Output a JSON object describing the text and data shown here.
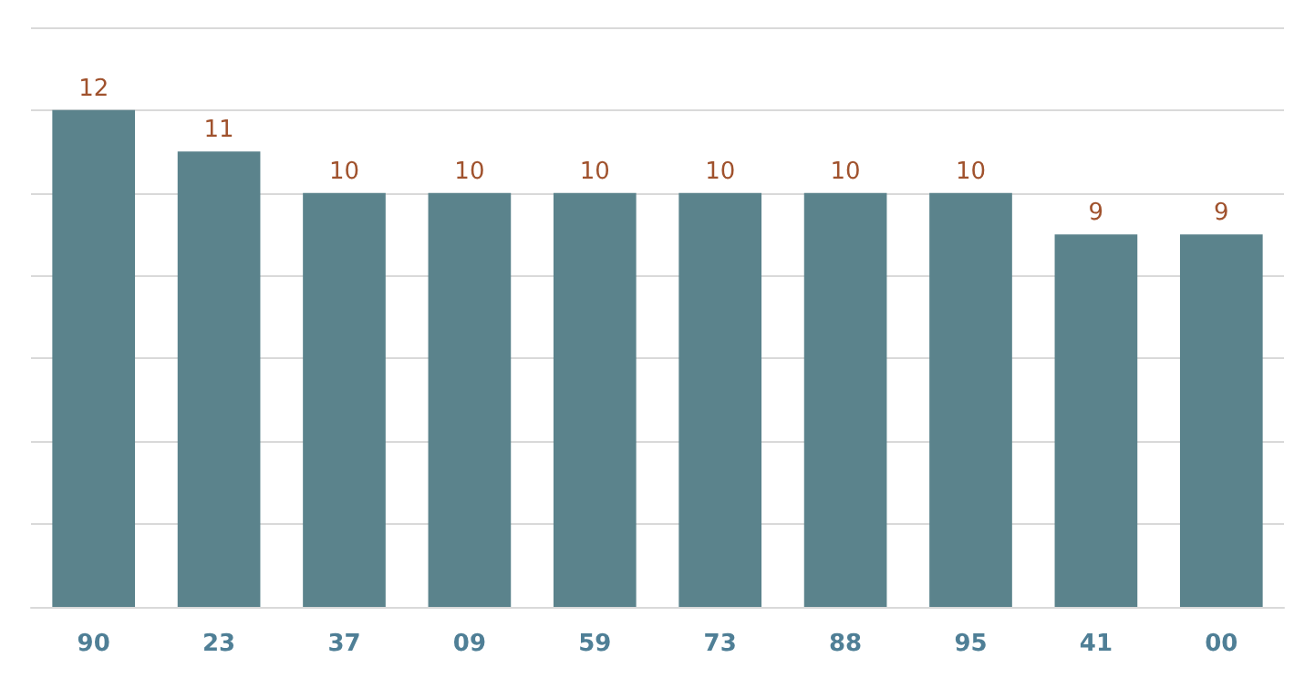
{
  "chart_data": {
    "type": "bar",
    "categories": [
      "90",
      "23",
      "37",
      "09",
      "59",
      "73",
      "88",
      "95",
      "41",
      "00"
    ],
    "values": [
      12,
      11,
      10,
      10,
      10,
      10,
      10,
      10,
      9,
      9
    ],
    "color": "#5b838c",
    "data_labels": true,
    "ylim": [
      0,
      14
    ],
    "yticks": [
      {
        "value": 0,
        "label": null
      },
      {
        "value": 2,
        "label": null
      },
      {
        "value": 4,
        "label": null
      },
      {
        "value": 6,
        "label": null
      },
      {
        "value": 8,
        "label": null
      },
      {
        "value": 10,
        "label": null
      },
      {
        "value": 12,
        "label": null
      },
      {
        "value": 14,
        "label": null
      }
    ],
    "grid": "y",
    "tick_labels": "x"
  }
}
